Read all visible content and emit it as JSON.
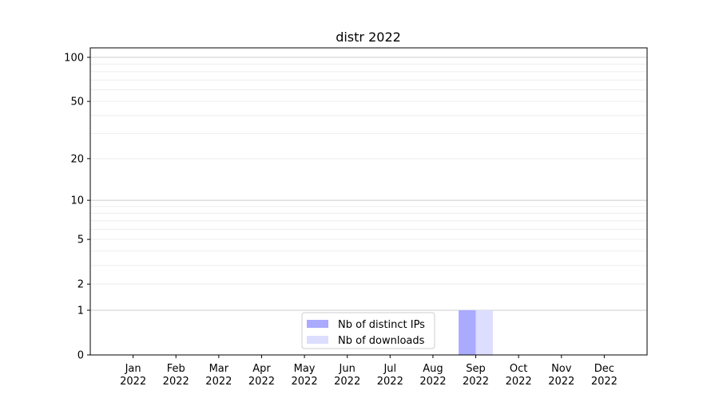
{
  "chart_data": {
    "type": "bar",
    "title": "distr 2022",
    "xlabel": "",
    "ylabel": "",
    "y_scale": "log(1+y)",
    "ylim": [
      0,
      116
    ],
    "y_ticks": [
      0,
      1,
      2,
      5,
      10,
      20,
      50,
      100
    ],
    "y_tick_labels": [
      "0",
      "1",
      "2",
      "5",
      "10",
      "20",
      "50",
      "100"
    ],
    "y_minor_ticks": [
      3,
      4,
      6,
      7,
      8,
      9,
      30,
      40,
      60,
      70,
      80,
      90
    ],
    "grid": true,
    "categories": [
      "Jan 2022",
      "Feb 2022",
      "Mar 2022",
      "Apr 2022",
      "May 2022",
      "Jun 2022",
      "Jul 2022",
      "Aug 2022",
      "Sep 2022",
      "Oct 2022",
      "Nov 2022",
      "Dec 2022"
    ],
    "x_tick_labels": [
      [
        "Jan",
        "2022"
      ],
      [
        "Feb",
        "2022"
      ],
      [
        "Mar",
        "2022"
      ],
      [
        "Apr",
        "2022"
      ],
      [
        "May",
        "2022"
      ],
      [
        "Jun",
        "2022"
      ],
      [
        "Jul",
        "2022"
      ],
      [
        "Aug",
        "2022"
      ],
      [
        "Sep",
        "2022"
      ],
      [
        "Oct",
        "2022"
      ],
      [
        "Nov",
        "2022"
      ],
      [
        "Dec",
        "2022"
      ]
    ],
    "series": [
      {
        "name": "Nb of distinct IPs",
        "color": "#aaaaff",
        "values": [
          0,
          0,
          0,
          0,
          0,
          0,
          0,
          0,
          1,
          0,
          0,
          0
        ]
      },
      {
        "name": "Nb of downloads",
        "color": "#ddddff",
        "values": [
          0,
          0,
          0,
          0,
          0,
          0,
          0,
          0,
          1,
          0,
          0,
          0
        ]
      }
    ],
    "legend_position": "lower-center"
  }
}
